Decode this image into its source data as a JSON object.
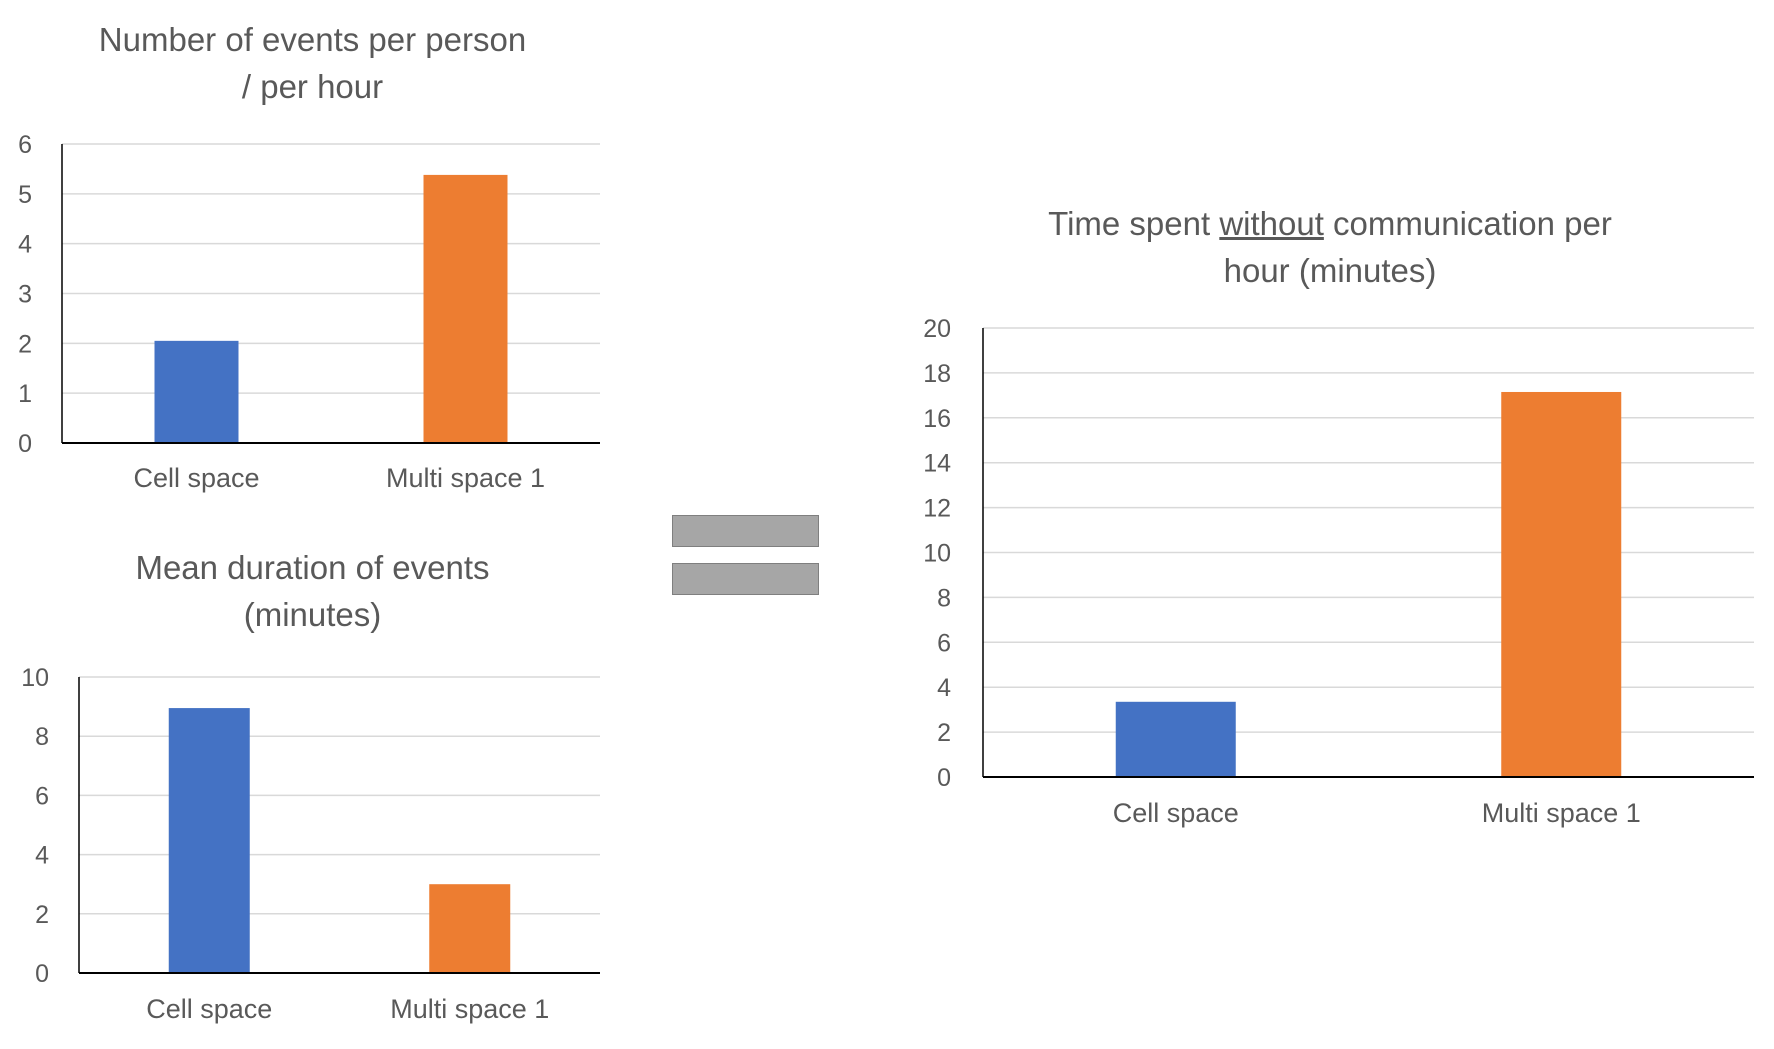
{
  "chart_data": [
    {
      "type": "bar",
      "title": "Number of events per person / per hour",
      "title_lines": [
        "Number of events per person",
        "/ per hour"
      ],
      "categories": [
        "Cell space",
        "Multi space 1"
      ],
      "values": [
        2.05,
        5.38
      ],
      "colors": [
        "#4472C4",
        "#ED7D31"
      ],
      "ylim": [
        0,
        6
      ],
      "yticks": [
        0,
        1,
        2,
        3,
        4,
        5,
        6
      ],
      "ytick_labels": [
        "0",
        "1",
        "2",
        "3",
        "4",
        "5",
        "6"
      ],
      "xlabel": "",
      "ylabel": "",
      "grid": true
    },
    {
      "type": "bar",
      "title": "Mean duration of events (minutes)",
      "title_lines": [
        "Mean duration of events",
        "(minutes)"
      ],
      "categories": [
        "Cell space",
        "Multi space 1"
      ],
      "values": [
        8.95,
        3.0
      ],
      "colors": [
        "#4472C4",
        "#ED7D31"
      ],
      "ylim": [
        0,
        10
      ],
      "yticks": [
        0,
        2,
        4,
        6,
        8,
        10
      ],
      "ytick_labels": [
        "0",
        "2",
        "4",
        "6",
        "8",
        "10"
      ],
      "xlabel": "",
      "ylabel": "",
      "grid": true
    },
    {
      "type": "bar",
      "title": "Time spent without communication per hour (minutes)",
      "title_lines": [
        [
          "Time spent ",
          "without",
          " communication per"
        ],
        "hour (minutes)"
      ],
      "categories": [
        "Cell space",
        "Multi space 1"
      ],
      "values": [
        3.35,
        17.15
      ],
      "colors": [
        "#4472C4",
        "#ED7D31"
      ],
      "ylim": [
        0,
        20
      ],
      "yticks": [
        0,
        2,
        4,
        6,
        8,
        10,
        12,
        14,
        16,
        18,
        20
      ],
      "ytick_labels": [
        "0",
        "2",
        "4",
        "6",
        "8",
        "10",
        "12",
        "14",
        "16",
        "18",
        "20"
      ],
      "xlabel": "",
      "ylabel": "",
      "grid": true
    }
  ],
  "equals_sign": {
    "color": "#A6A6A6"
  }
}
